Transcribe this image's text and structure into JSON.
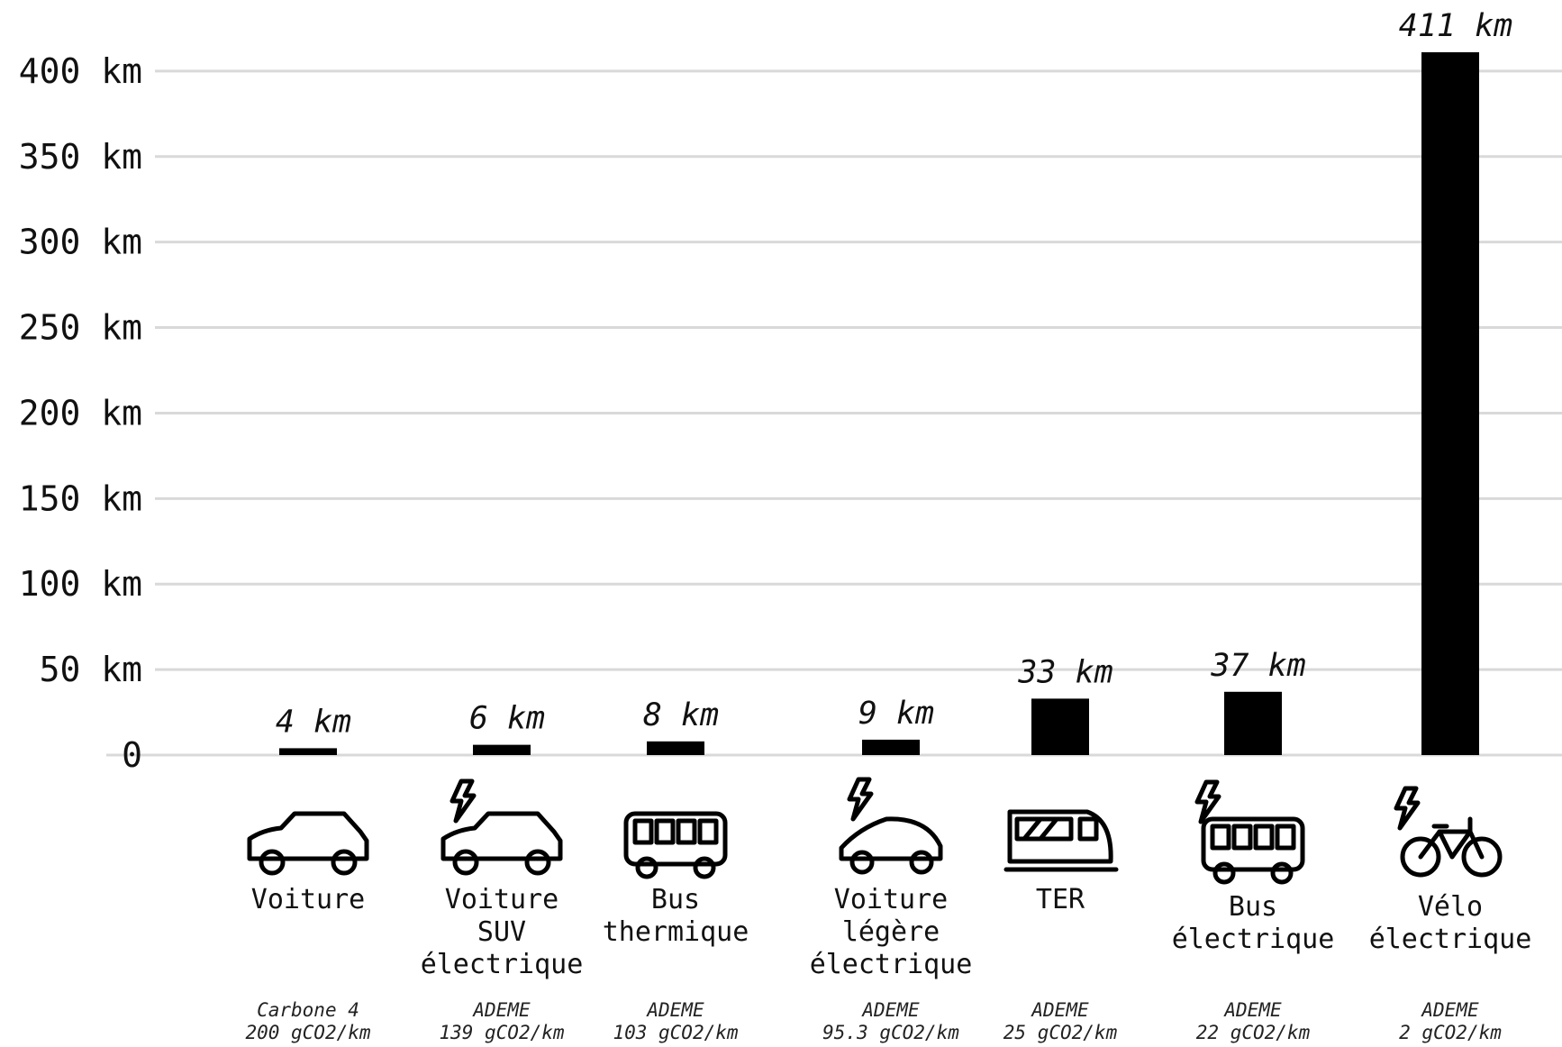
{
  "chart_data": {
    "type": "bar",
    "title": "",
    "xlabel": "",
    "ylabel": "",
    "ylim": [
      0,
      411
    ],
    "grid": true,
    "y_ticks": [
      "0",
      "50 km",
      "100 km",
      "150 km",
      "200 km",
      "250 km",
      "300 km",
      "350 km",
      "400 km"
    ],
    "y_tick_values": [
      0,
      50,
      100,
      150,
      200,
      250,
      300,
      350,
      400
    ],
    "categories": [
      [
        "Voiture"
      ],
      [
        "Voiture",
        "SUV",
        "électrique"
      ],
      [
        "Bus",
        "thermique"
      ],
      [
        "Voiture",
        "légère",
        "électrique"
      ],
      [
        "TER"
      ],
      [
        "Bus",
        "électrique"
      ],
      [
        "Vélo",
        "électrique"
      ]
    ],
    "values": [
      4,
      6,
      8,
      9,
      33,
      37,
      411
    ],
    "value_labels": [
      "4 km",
      "6 km",
      "8 km",
      "9 km",
      "33 km",
      "37 km",
      "411 km"
    ],
    "sources": [
      [
        "Carbone 4",
        "200 gCO2/km"
      ],
      [
        "ADEME",
        "139 gCO2/km"
      ],
      [
        "ADEME",
        "103 gCO2/km"
      ],
      [
        "ADEME",
        "95.3 gCO2/km"
      ],
      [
        "ADEME",
        "25 gCO2/km"
      ],
      [
        "ADEME",
        "22 gCO2/km"
      ],
      [
        "ADEME",
        "2 gCO2/km"
      ]
    ],
    "icons": [
      "car-icon",
      "electric-suv-icon",
      "bus-icon",
      "electric-small-car-icon",
      "train-icon",
      "electric-bus-icon",
      "electric-bike-icon"
    ],
    "bar_color": "#000000",
    "grid_color": "#d9d9d9"
  }
}
